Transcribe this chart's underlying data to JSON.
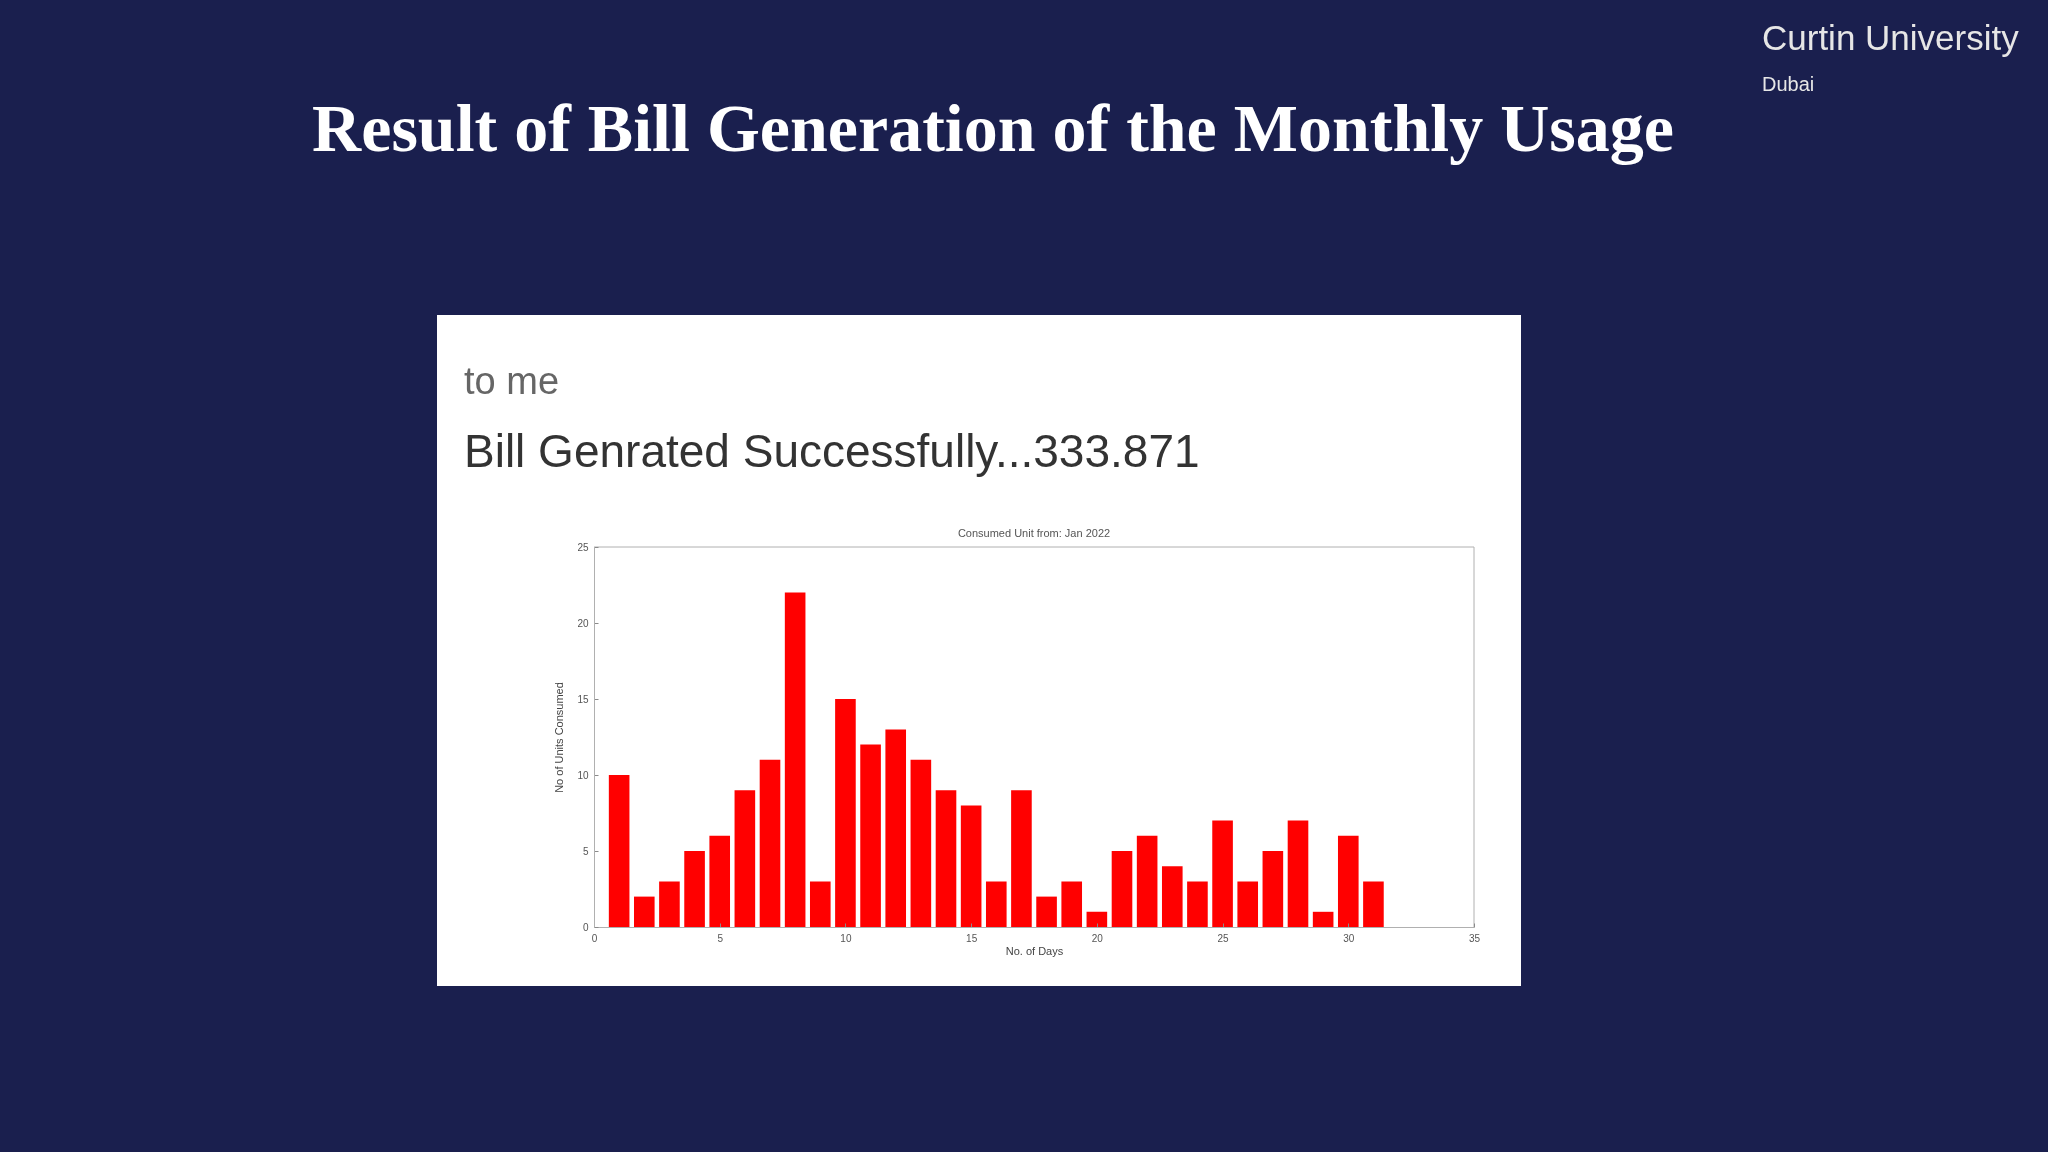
{
  "chart_data": {
    "type": "bar",
    "title": "Result of Bill Generation of the Monthly Usage",
    "subtitle": "Consumed Unit from: Jan 2022",
    "xlabel": "No. of Days",
    "ylabel": "No of Units Consumed",
    "x": [
      1,
      2,
      3,
      4,
      5,
      6,
      7,
      8,
      9,
      10,
      11,
      12,
      13,
      14,
      15,
      16,
      17,
      18,
      19,
      20,
      21,
      22,
      23,
      24,
      25,
      26,
      27,
      28,
      29,
      30,
      31
    ],
    "values": [
      10,
      2,
      3,
      5,
      6,
      9,
      11,
      22,
      3,
      15,
      12,
      13,
      11,
      9,
      8,
      3,
      9,
      2,
      3,
      1,
      5,
      6,
      4,
      3,
      7,
      3,
      5,
      7,
      1,
      6,
      3
    ],
    "color": "#ff0000",
    "xlim": [
      0,
      35
    ],
    "xticks": [
      0,
      5,
      10,
      15,
      20,
      25,
      30,
      35
    ],
    "ylim": [
      0,
      25
    ],
    "yticks": [
      0,
      5,
      10,
      15,
      20,
      25
    ],
    "annotations": [
      "to me",
      "Bill Genrated Successfully...333.871",
      "Curtin University",
      "Dubai"
    ]
  }
}
